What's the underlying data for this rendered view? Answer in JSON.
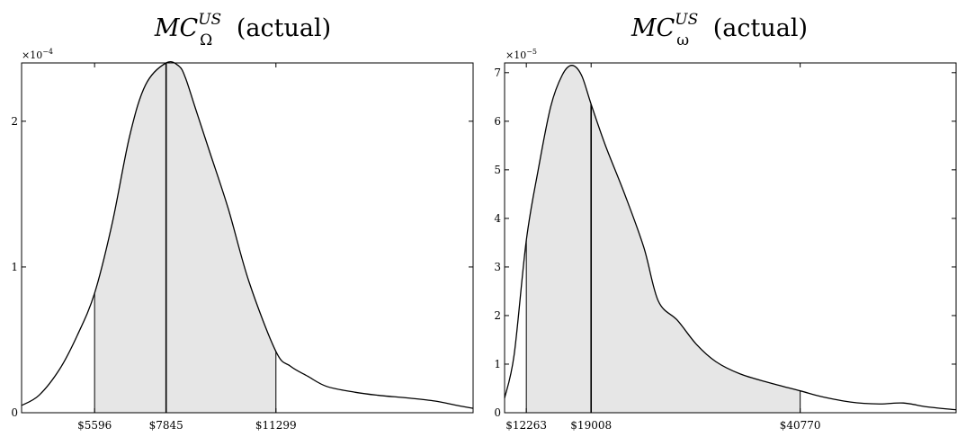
{
  "chart_data": [
    {
      "type": "area",
      "title": {
        "base": "MC",
        "sup": "US",
        "sub": "Ω",
        "suffix": " (actual)"
      },
      "y_multiplier": "×10",
      "y_exponent": "−4",
      "ylim": [
        0,
        2.4
      ],
      "yticks": [
        {
          "value": 0,
          "label": "0"
        },
        {
          "value": 1,
          "label": "1"
        },
        {
          "value": 2,
          "label": "2"
        }
      ],
      "xlim": [
        3300,
        17500
      ],
      "xticks": [
        {
          "value": 5596,
          "label": "$5596"
        },
        {
          "value": 7845,
          "label": "$7845"
        },
        {
          "value": 11299,
          "label": "$11299"
        }
      ],
      "shade_range": [
        5596,
        11299
      ],
      "vlines": [
        5596,
        7845,
        11299
      ],
      "median": 7845,
      "grid": false,
      "x": [
        3300,
        3850,
        4500,
        5050,
        5596,
        6150,
        6700,
        7200,
        7845,
        8240,
        8450,
        8750,
        9200,
        9800,
        10450,
        11299,
        11750,
        12300,
        12900,
        13800,
        14500,
        15500,
        16300,
        17000,
        17500
      ],
      "y": [
        0.05,
        0.12,
        0.3,
        0.53,
        0.82,
        1.3,
        1.9,
        2.25,
        2.4,
        2.38,
        2.3,
        2.1,
        1.8,
        1.4,
        0.9,
        0.42,
        0.32,
        0.25,
        0.18,
        0.14,
        0.12,
        0.1,
        0.08,
        0.05,
        0.03
      ]
    },
    {
      "type": "area",
      "title": {
        "base": "MC",
        "sup": "US",
        "sub": "ω",
        "suffix": " (actual)"
      },
      "y_multiplier": "×10",
      "y_exponent": "−5",
      "ylim": [
        0,
        7.2
      ],
      "yticks": [
        {
          "value": 0,
          "label": "0"
        },
        {
          "value": 1,
          "label": "1"
        },
        {
          "value": 2,
          "label": "2"
        },
        {
          "value": 3,
          "label": "3"
        },
        {
          "value": 4,
          "label": "4"
        },
        {
          "value": 5,
          "label": "5"
        },
        {
          "value": 6,
          "label": "6"
        },
        {
          "value": 7,
          "label": "7"
        }
      ],
      "xlim": [
        10000,
        57000
      ],
      "xticks": [
        {
          "value": 12263,
          "label": "$12263"
        },
        {
          "value": 19008,
          "label": "$19008"
        },
        {
          "value": 40770,
          "label": "$40770"
        }
      ],
      "shade_range": [
        12263,
        40770
      ],
      "vlines": [
        12263,
        19008,
        40770
      ],
      "median": 19008,
      "grid": false,
      "x": [
        10000,
        11000,
        12263,
        13500,
        14800,
        16000,
        17000,
        18000,
        19008,
        20500,
        22500,
        24500,
        26000,
        28000,
        30000,
        32000,
        34500,
        37500,
        40770,
        43000,
        46000,
        49000,
        51500,
        54000,
        57000
      ],
      "y": [
        0.3,
        1.2,
        3.55,
        5.0,
        6.3,
        6.95,
        7.15,
        6.95,
        6.35,
        5.5,
        4.5,
        3.4,
        2.3,
        1.9,
        1.4,
        1.05,
        0.8,
        0.62,
        0.45,
        0.33,
        0.22,
        0.18,
        0.2,
        0.12,
        0.06
      ]
    }
  ]
}
